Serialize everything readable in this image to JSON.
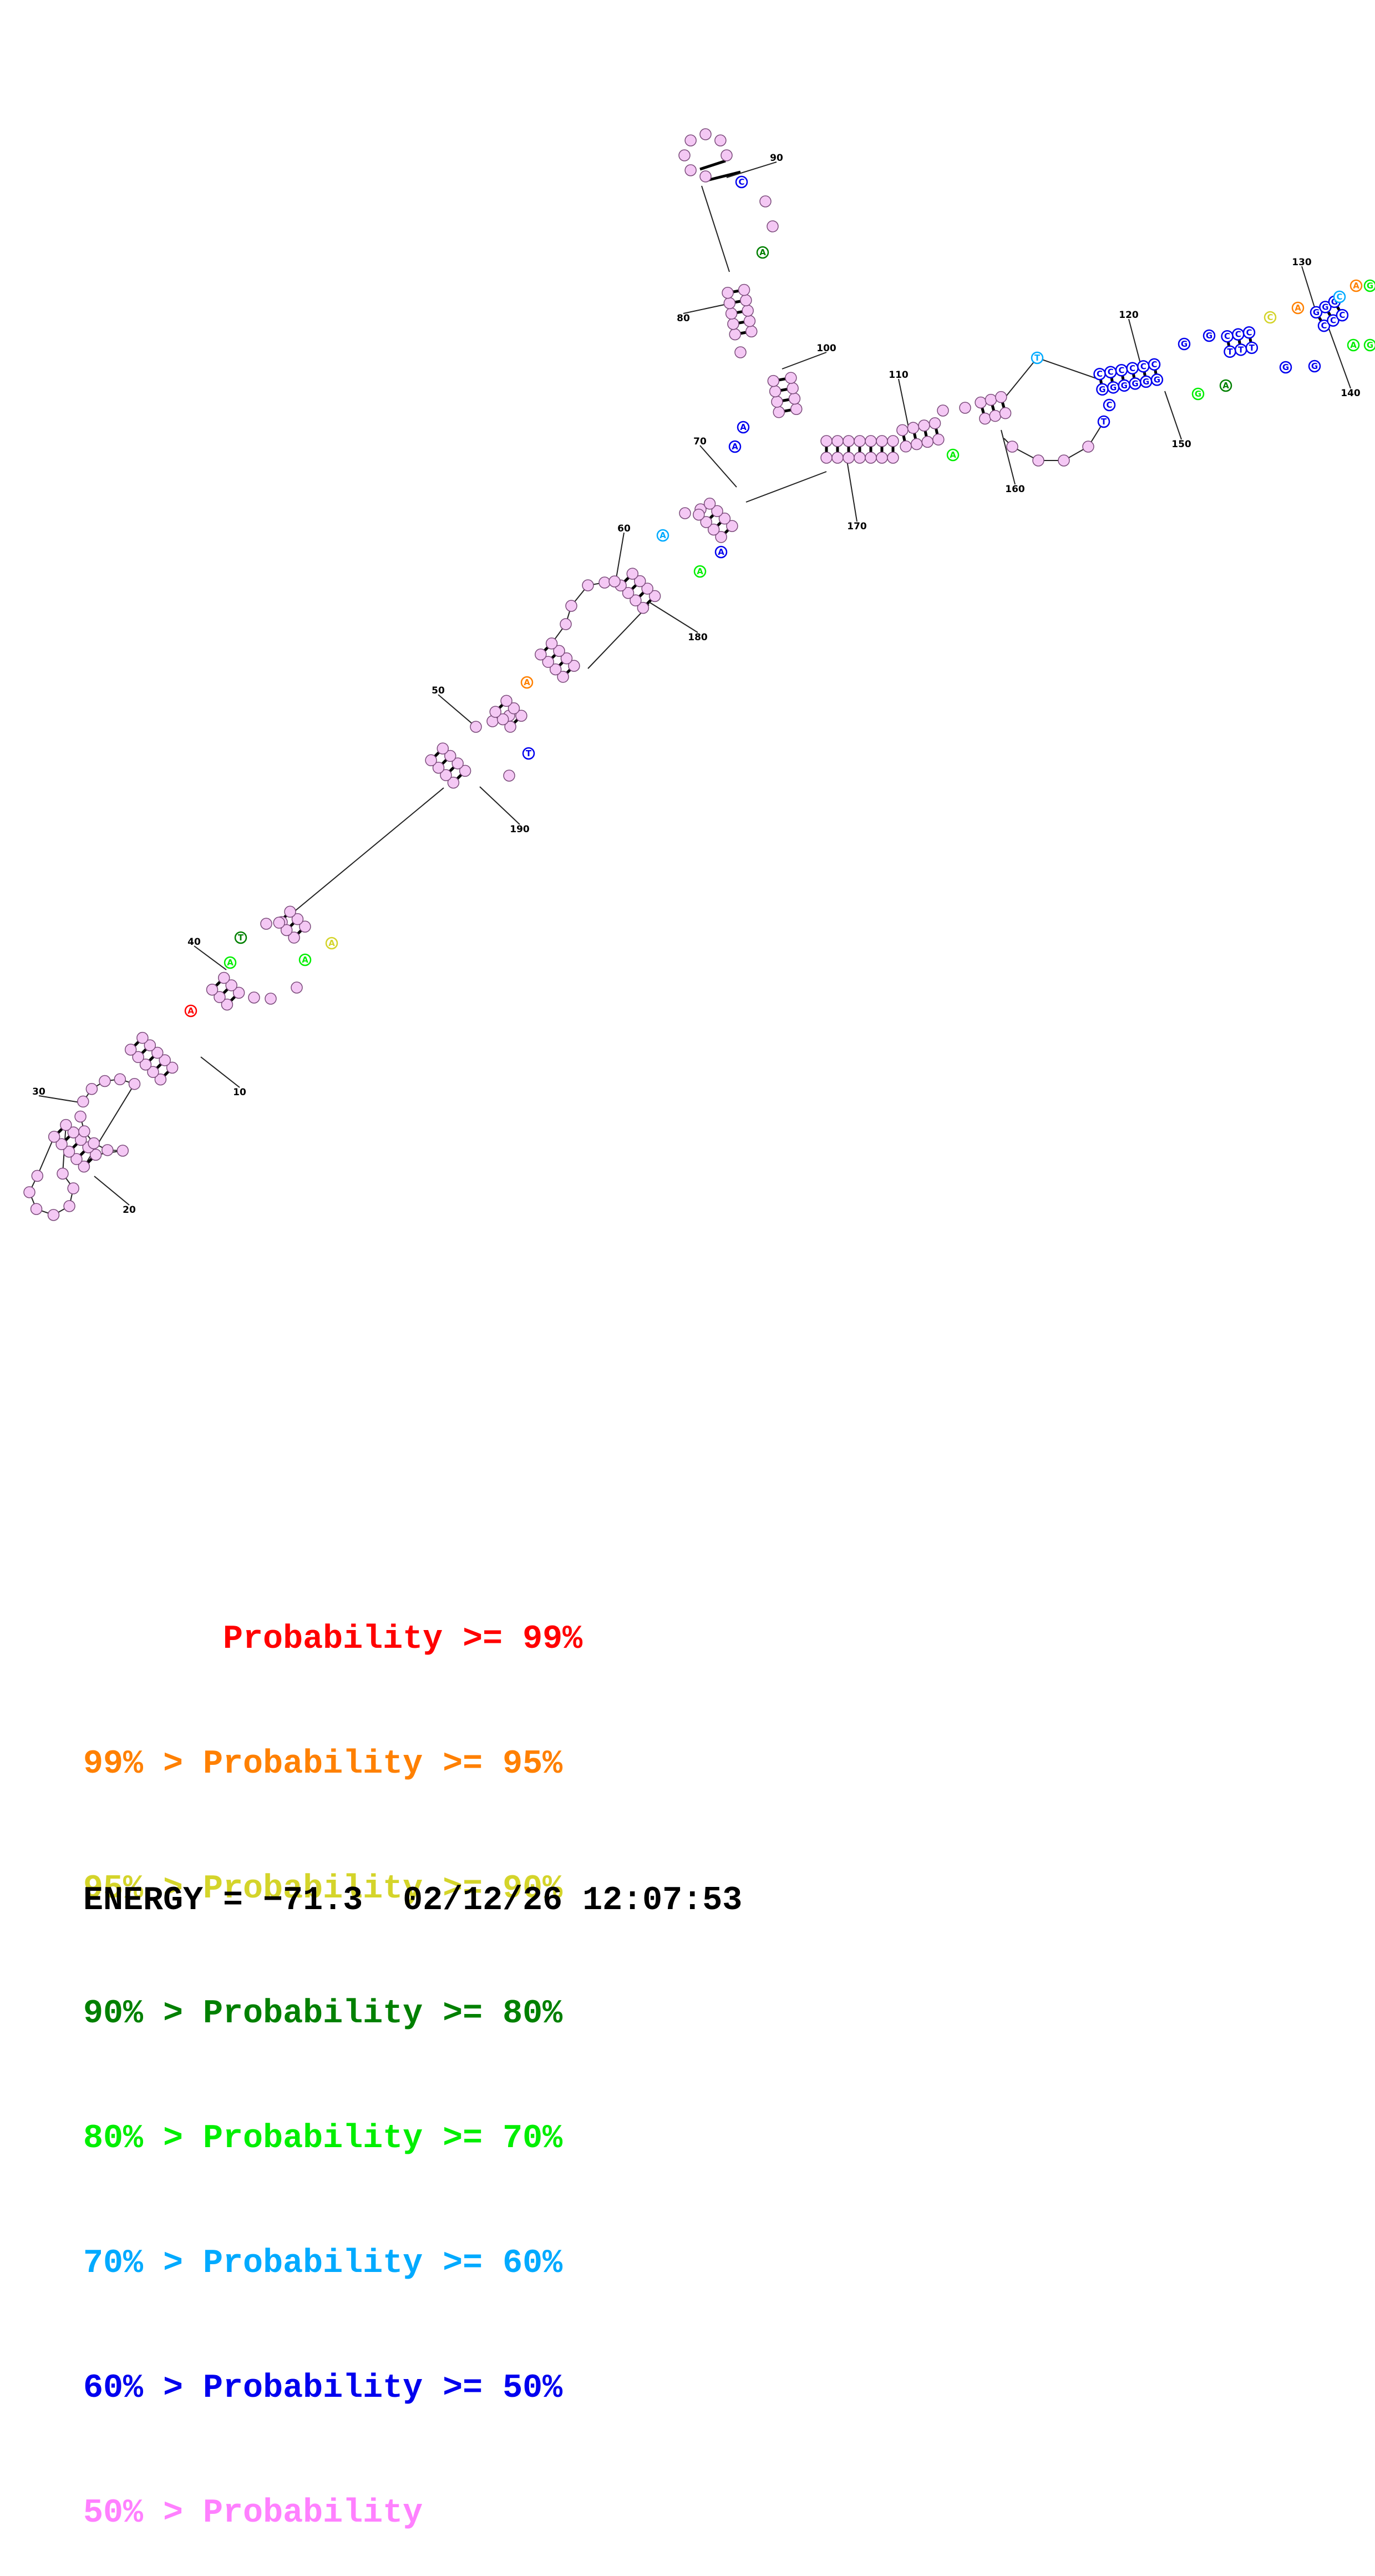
{
  "structure": {
    "position_labels": [
      "10",
      "20",
      "30",
      "40",
      "50",
      "60",
      "70",
      "80",
      "90",
      "100",
      "110",
      "120",
      "130",
      "140",
      "150",
      "160",
      "170",
      "180",
      "190"
    ],
    "colors": {
      "p99": "#ff0000",
      "p95": "#ff8000",
      "p90": "#d4d42a",
      "p80": "#008000",
      "p70": "#00ee00",
      "p60": "#00aaff",
      "p50": "#0000ee",
      "low": "#ff80ff",
      "low_fill": "#f4c8f4"
    }
  },
  "legend": [
    {
      "prefix": "       ",
      "label": "Probability >= 99%",
      "color": "#ff0000"
    },
    {
      "prefix": "99% > ",
      "label": "Probability >= 95%",
      "color": "#ff8000"
    },
    {
      "prefix": "95% > ",
      "label": "Probability >= 90%",
      "color": "#d4d42a"
    },
    {
      "prefix": "90% > ",
      "label": "Probability >= 80%",
      "color": "#008000"
    },
    {
      "prefix": "80% > ",
      "label": "Probability >= 70%",
      "color": "#00ee00"
    },
    {
      "prefix": "70% > ",
      "label": "Probability >= 60%",
      "color": "#00aaff"
    },
    {
      "prefix": "60% > ",
      "label": "Probability >= 50%",
      "color": "#0000ee"
    },
    {
      "prefix": "50% > ",
      "label": "Probability",
      "color": "#ff80ff"
    }
  ],
  "footer": {
    "energy": "ENERGY = −71.3",
    "timestamp": "02/12/26 12:07:53"
  }
}
